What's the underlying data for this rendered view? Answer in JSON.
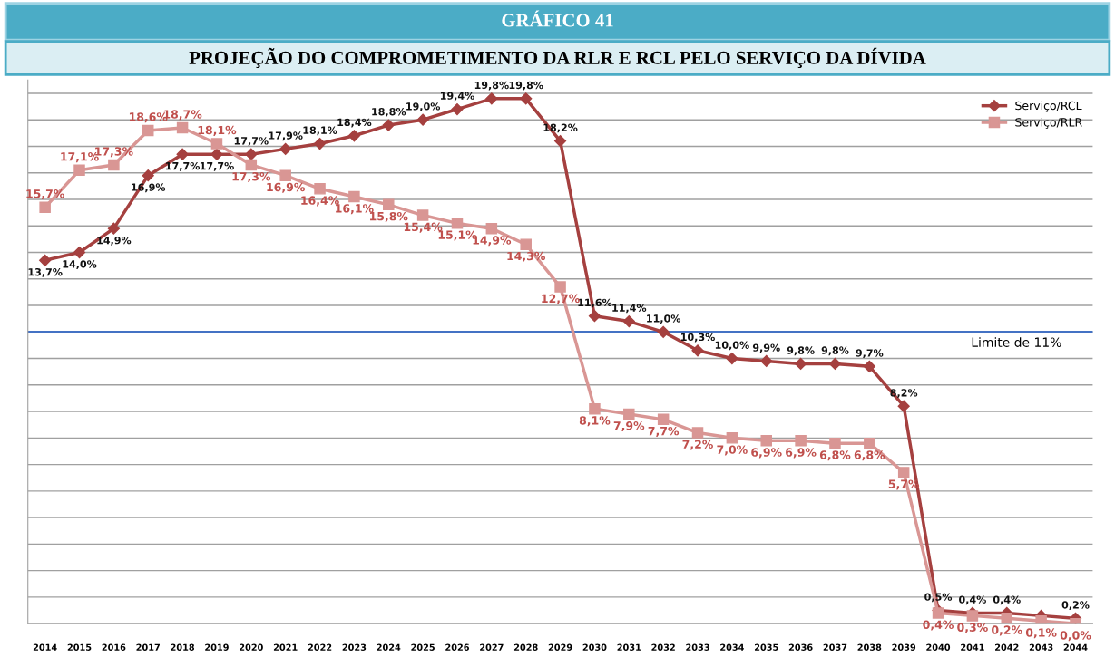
{
  "chart_data": {
    "type": "line",
    "title": "GRÁFICO 41",
    "subtitle": "PROJEÇÃO DO COMPROMETIMENTO DA RLR E RCL PELO SERVIÇO DA DÍVIDA",
    "categories": [
      "2014",
      "2015",
      "2016",
      "2017",
      "2018",
      "2019",
      "2020",
      "2021",
      "2022",
      "2023",
      "2024",
      "2025",
      "2026",
      "2027",
      "2028",
      "2029",
      "2030",
      "2031",
      "2032",
      "2033",
      "2034",
      "2035",
      "2036",
      "2037",
      "2038",
      "2039",
      "2040",
      "2041",
      "2042",
      "2043",
      "2044"
    ],
    "series": [
      {
        "name": "Serviço/RCL",
        "color": "#a5403f",
        "marker": "diamond",
        "values": [
          13.7,
          14.0,
          14.9,
          16.9,
          17.7,
          17.7,
          17.7,
          17.9,
          18.1,
          18.4,
          18.8,
          19.0,
          19.4,
          19.8,
          19.8,
          18.2,
          11.6,
          11.4,
          11.0,
          10.3,
          10.0,
          9.9,
          9.8,
          9.8,
          9.7,
          8.2,
          0.5,
          0.4,
          0.4,
          0.3,
          0.2
        ],
        "value_labels": [
          "13,7%",
          "14,0%",
          "14,9%",
          "16,9%",
          "17,7%",
          "17,7%",
          "17,7%",
          "17,9%",
          "18,1%",
          "18,4%",
          "18,8%",
          "19,0%",
          "19,4%",
          "19,8%",
          "19,8%",
          "18,2%",
          "11,6%",
          "11,4%",
          "11,0%",
          "10,3%",
          "10,0%",
          "9,9%",
          "9,8%",
          "9,8%",
          "9,7%",
          "8,2%",
          "0,5%",
          "0,4%",
          "0,4%",
          null,
          "0,2%"
        ]
      },
      {
        "name": "Serviço/RLR",
        "color": "#d99694",
        "marker": "square",
        "values": [
          15.7,
          17.1,
          17.3,
          18.6,
          18.7,
          18.1,
          17.3,
          16.9,
          16.4,
          16.1,
          15.8,
          15.4,
          15.1,
          14.9,
          14.3,
          12.7,
          8.1,
          7.9,
          7.7,
          7.2,
          7.0,
          6.9,
          6.9,
          6.8,
          6.8,
          5.7,
          0.4,
          0.3,
          0.2,
          0.1,
          0.0
        ],
        "value_labels": [
          "15,7%",
          "17,1%",
          "17,3%",
          "18,6%",
          "18,7%",
          "18,1%",
          "17,3%",
          "16,9%",
          "16,4%",
          "16,1%",
          "15,8%",
          "15,4%",
          "15,1%",
          "14,9%",
          "14,3%",
          "12,7%",
          "8,1%",
          "7,9%",
          "7,7%",
          "7,2%",
          "7,0%",
          "6,9%",
          "6,9%",
          "6,8%",
          "6,8%",
          "5,7%",
          "0,4%",
          "0,3%",
          "0,2%",
          "0,1%",
          "0,0%"
        ]
      }
    ],
    "ylim": [
      0,
      20.5
    ],
    "yticks": [
      {
        "value": 0,
        "label": null
      },
      {
        "value": 1,
        "label": null
      },
      {
        "value": 2,
        "label": null
      },
      {
        "value": 3,
        "label": null
      },
      {
        "value": 4,
        "label": null
      },
      {
        "value": 5,
        "label": null
      },
      {
        "value": 6,
        "label": null
      },
      {
        "value": 7,
        "label": null
      },
      {
        "value": 8,
        "label": null
      },
      {
        "value": 9,
        "label": null
      },
      {
        "value": 10,
        "label": null
      },
      {
        "value": 11,
        "label": null
      },
      {
        "value": 12,
        "label": null
      },
      {
        "value": 13,
        "label": null
      },
      {
        "value": 14,
        "label": null
      },
      {
        "value": 15,
        "label": null
      },
      {
        "value": 16,
        "label": null
      },
      {
        "value": 17,
        "label": null
      },
      {
        "value": 18,
        "label": null
      },
      {
        "value": 19,
        "label": null
      },
      {
        "value": 20,
        "label": null
      }
    ],
    "tick_labels": "x",
    "grid": "y",
    "legend": "top right",
    "line_style": "solid",
    "ref_lines": [
      {
        "axis": "y",
        "value": 11,
        "label": "Limite de 11%",
        "color": "#4472c4"
      }
    ]
  }
}
